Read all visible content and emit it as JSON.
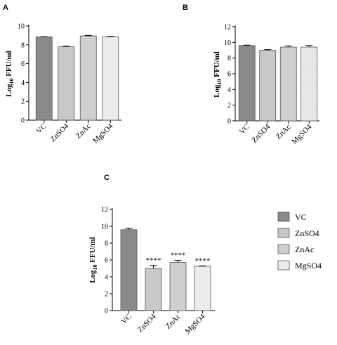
{
  "chart_data": [
    {
      "panel": "A",
      "type": "bar",
      "ylabel_base": "Log",
      "ylabel_sub": "10",
      "ylabel_rest": " FFU/ml",
      "ylim": [
        0,
        10
      ],
      "yticks": [
        0,
        2,
        4,
        6,
        8,
        10
      ],
      "categories": [
        "VC",
        "ZnSO4",
        "ZnAc",
        "MgSO4"
      ],
      "values": [
        8.85,
        7.8,
        8.95,
        8.85
      ],
      "errors": [
        0.02,
        0.07,
        0.05,
        0.05
      ],
      "annotations": [
        "",
        "",
        "",
        ""
      ]
    },
    {
      "panel": "B",
      "type": "bar",
      "ylabel_base": "Log",
      "ylabel_sub": "10",
      "ylabel_rest": " FFU/ml",
      "ylim": [
        0,
        12
      ],
      "yticks": [
        0,
        2,
        4,
        6,
        8,
        10,
        12
      ],
      "categories": [
        "VC",
        "ZnSO4",
        "ZnAc",
        "MgSO4"
      ],
      "values": [
        9.6,
        9.0,
        9.4,
        9.4
      ],
      "errors": [
        0.05,
        0.08,
        0.15,
        0.2
      ],
      "annotations": [
        "",
        "",
        "",
        ""
      ]
    },
    {
      "panel": "C",
      "type": "bar",
      "ylabel_base": "Log",
      "ylabel_sub": "10",
      "ylabel_rest": " FFU/ml",
      "ylim": [
        0,
        12
      ],
      "yticks": [
        0,
        2,
        4,
        6,
        8,
        10,
        12
      ],
      "categories": [
        "VC",
        "ZnSO4",
        "ZnAc",
        "MgSO4"
      ],
      "values": [
        9.6,
        5.0,
        5.7,
        5.25
      ],
      "errors": [
        0.15,
        0.35,
        0.25,
        0.05
      ],
      "annotations": [
        "",
        "****",
        "****",
        "****"
      ]
    }
  ],
  "series_colors": {
    "VC": "#8a8a8a",
    "ZnSO4": "#c8c8c8",
    "ZnAc": "#cfcfcf",
    "MgSO4": "#ececec"
  },
  "legend": {
    "placement": "right-of-panel-C",
    "items": [
      "VC",
      "ZnSO4",
      "ZnAc",
      "MgSO4"
    ]
  }
}
